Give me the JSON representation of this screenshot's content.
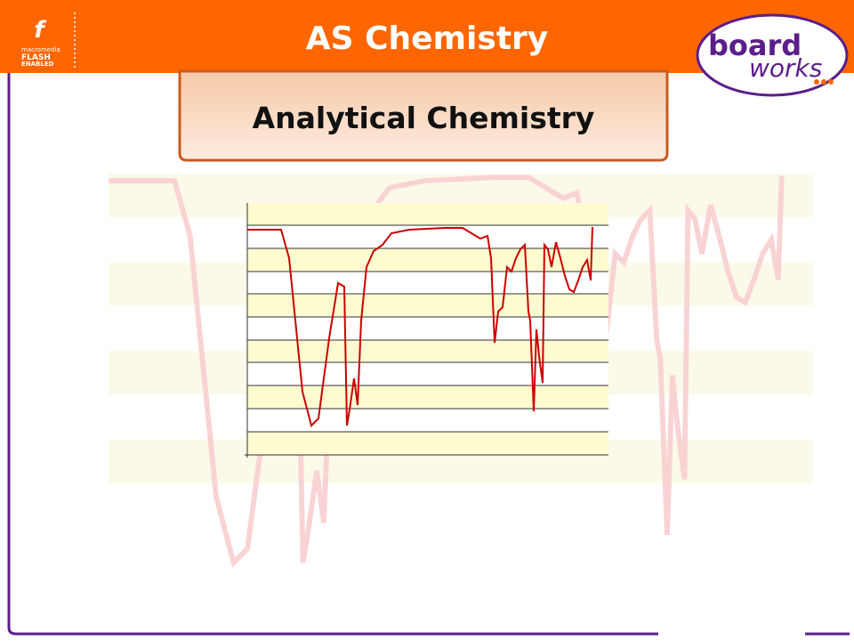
{
  "header": {
    "title": "AS Chemistry",
    "flash_badge": [
      "macromedia",
      "FLASH",
      "ENABLED"
    ],
    "logo": [
      "board",
      "works"
    ]
  },
  "subtitle": "Analytical Chemistry"
}
